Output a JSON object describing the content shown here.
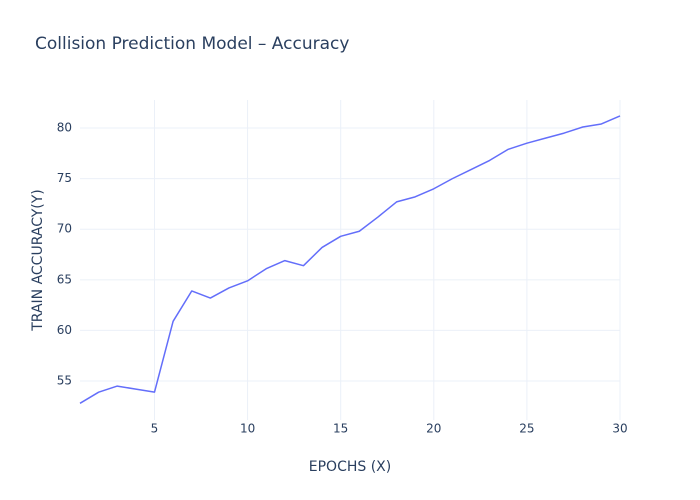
{
  "chart_data": {
    "type": "line",
    "title": "Collision Prediction Model – Accuracy",
    "x_label": "EPOCHS (X)",
    "y_label": "TRAIN ACCURACY(Y)",
    "x": [
      1,
      2,
      3,
      4,
      5,
      6,
      7,
      8,
      9,
      10,
      11,
      12,
      13,
      14,
      15,
      16,
      17,
      18,
      19,
      20,
      21,
      22,
      23,
      24,
      25,
      26,
      27,
      28,
      29,
      30
    ],
    "series": [
      {
        "name": "Train accuracy",
        "color": "#636efa",
        "values": [
          52.8,
          53.9,
          54.5,
          54.2,
          53.9,
          60.9,
          63.9,
          63.2,
          64.2,
          64.9,
          66.1,
          66.9,
          66.4,
          68.2,
          69.3,
          69.8,
          71.2,
          72.7,
          73.2,
          74.0,
          75.0,
          75.9,
          76.8,
          77.9,
          78.5,
          79.0,
          79.5,
          80.1,
          80.4,
          81.2
        ]
      }
    ],
    "xlim": [
      1,
      30
    ],
    "xticks": [
      5,
      10,
      15,
      20,
      25,
      30
    ],
    "ylim": [
      51.15,
      82.77
    ],
    "yticks": [
      55,
      60,
      65,
      70,
      75,
      80
    ],
    "grid": true
  }
}
